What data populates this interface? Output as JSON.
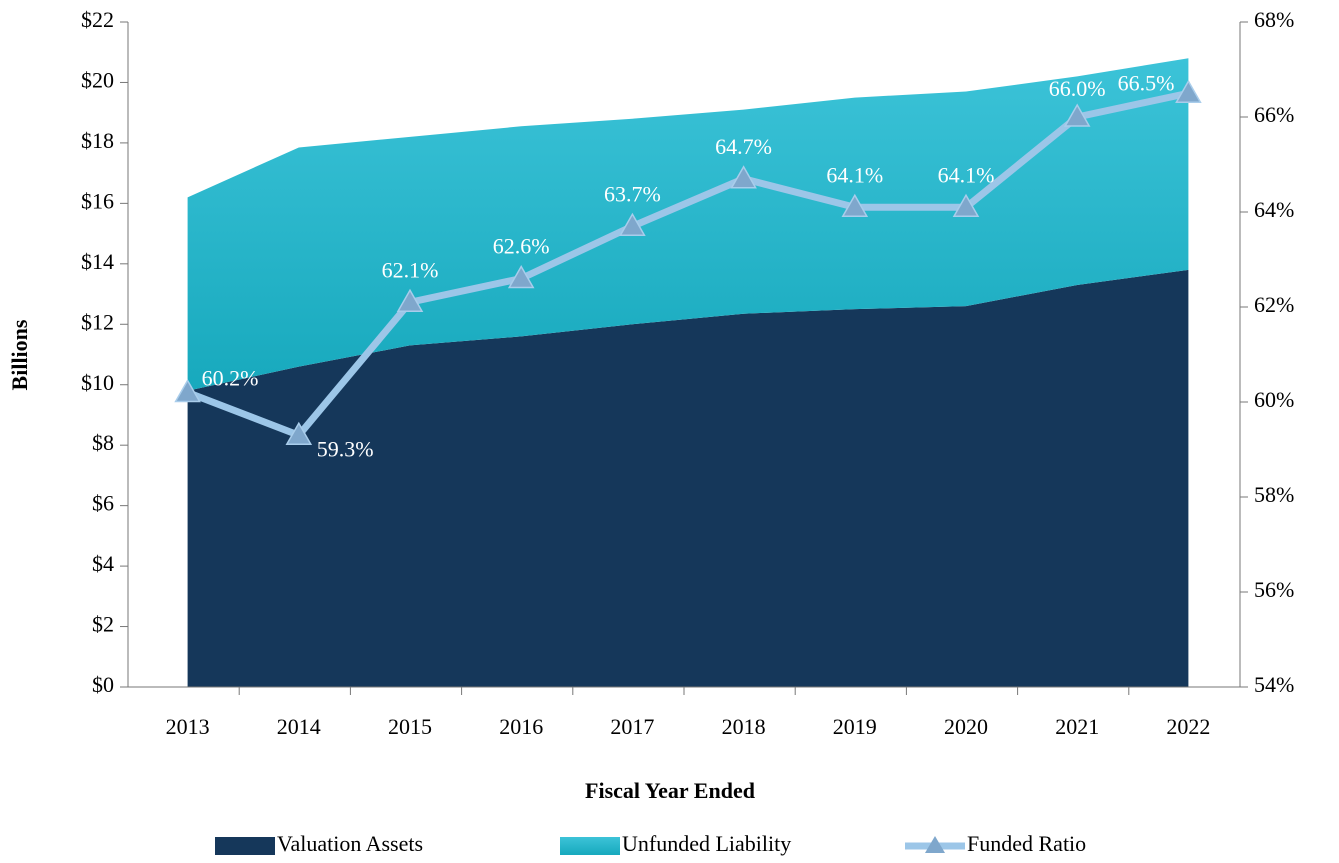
{
  "chart_data": {
    "type": "area_line",
    "x_label": "Fiscal Year Ended",
    "y_label": "Billions",
    "categories": [
      "2013",
      "2014",
      "2015",
      "2016",
      "2017",
      "2018",
      "2019",
      "2020",
      "2021",
      "2022"
    ],
    "series": [
      {
        "name": "Valuation Assets",
        "color": "#15375a",
        "type": "area",
        "values": [
          9.8,
          10.6,
          11.3,
          11.6,
          12.0,
          12.35,
          12.5,
          12.6,
          13.3,
          13.8
        ]
      },
      {
        "name": "Unfunded Liability",
        "color": "#22b3c8",
        "type": "area",
        "values": [
          6.4,
          7.25,
          6.9,
          6.95,
          6.8,
          6.75,
          7.0,
          7.1,
          6.9,
          7.0
        ]
      },
      {
        "name": "Funded Ratio",
        "color": "#9cc6e8",
        "type": "line",
        "axis": "y2",
        "values": [
          60.2,
          59.3,
          62.1,
          62.6,
          63.7,
          64.7,
          64.1,
          64.1,
          66.0,
          66.5
        ],
        "value_labels": [
          "60.2%",
          "59.3%",
          "62.1%",
          "62.6%",
          "63.7%",
          "64.7%",
          "64.1%",
          "64.1%",
          "66.0%",
          "66.5%"
        ]
      }
    ],
    "ylim": [
      0,
      22
    ],
    "yticks": [
      {
        "value": 0,
        "label": "$0"
      },
      {
        "value": 2,
        "label": "$2"
      },
      {
        "value": 4,
        "label": "$4"
      },
      {
        "value": 6,
        "label": "$6"
      },
      {
        "value": 8,
        "label": "$8"
      },
      {
        "value": 10,
        "label": "$10"
      },
      {
        "value": 12,
        "label": "$12"
      },
      {
        "value": 14,
        "label": "$14"
      },
      {
        "value": 16,
        "label": "$16"
      },
      {
        "value": 18,
        "label": "$18"
      },
      {
        "value": 20,
        "label": "$20"
      },
      {
        "value": 22,
        "label": "$22"
      }
    ],
    "y2lim": [
      54,
      68
    ],
    "y2ticks": [
      {
        "value": 54,
        "label": "54%"
      },
      {
        "value": 56,
        "label": "56%"
      },
      {
        "value": 58,
        "label": "58%"
      },
      {
        "value": 60,
        "label": "60%"
      },
      {
        "value": 62,
        "label": "62%"
      },
      {
        "value": 64,
        "label": "64%"
      },
      {
        "value": 66,
        "label": "66%"
      },
      {
        "value": 68,
        "label": "68%"
      }
    ],
    "legend": "bottom"
  }
}
